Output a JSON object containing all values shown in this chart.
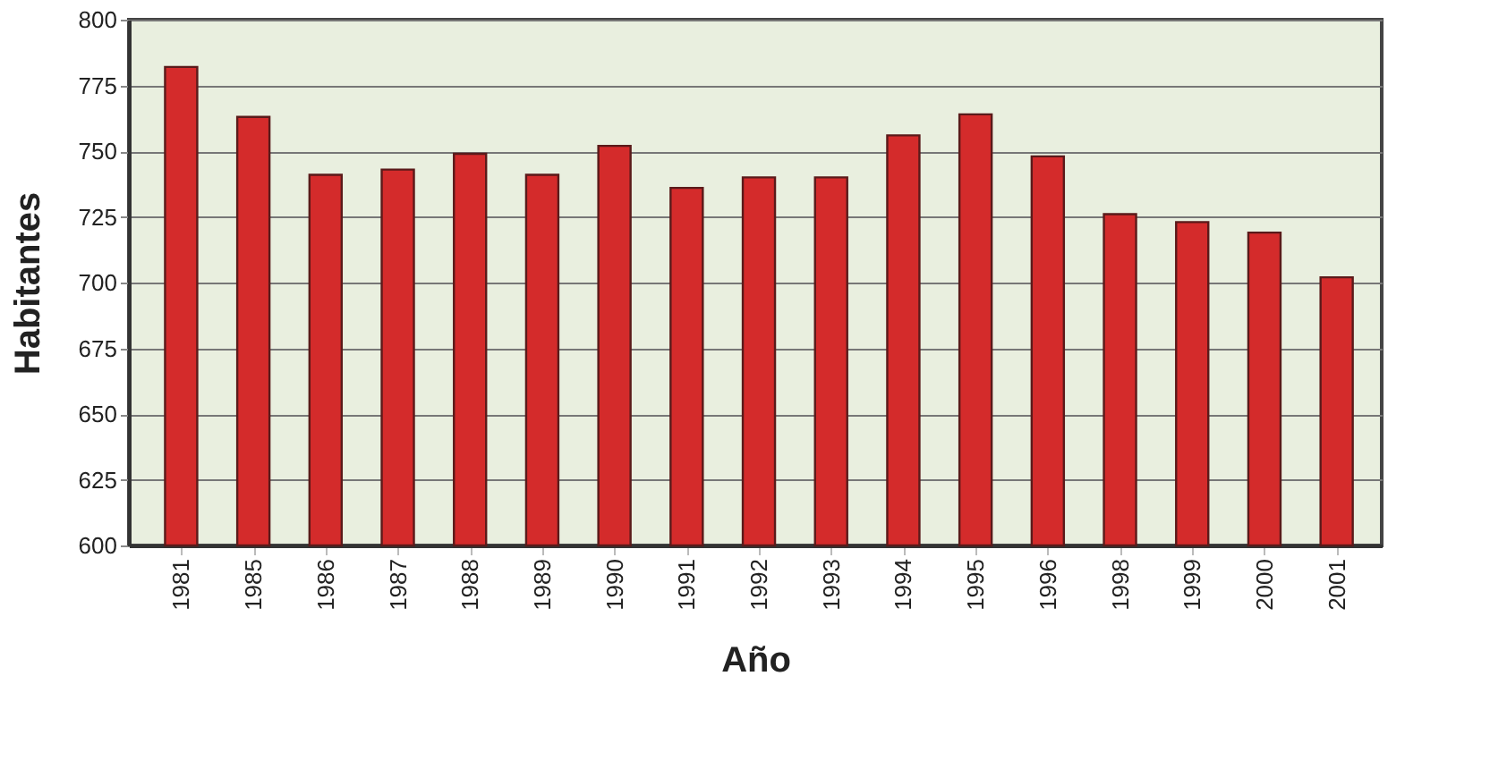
{
  "chart_data": {
    "type": "bar",
    "xlabel": "Año",
    "ylabel": "Habitantes",
    "categories": [
      "1981",
      "1985",
      "1986",
      "1987",
      "1988",
      "1989",
      "1990",
      "1991",
      "1992",
      "1993",
      "1994",
      "1995",
      "1996",
      "1998",
      "1999",
      "2000",
      "2001"
    ],
    "values": [
      782,
      763,
      741,
      743,
      749,
      741,
      752,
      736,
      740,
      740,
      756,
      764,
      748,
      726,
      723,
      719,
      702
    ],
    "color": "#d42b2b",
    "ylim": [
      600,
      800
    ],
    "yticks": [
      600,
      625,
      650,
      675,
      700,
      725,
      750,
      775,
      800
    ],
    "grid": "y"
  }
}
